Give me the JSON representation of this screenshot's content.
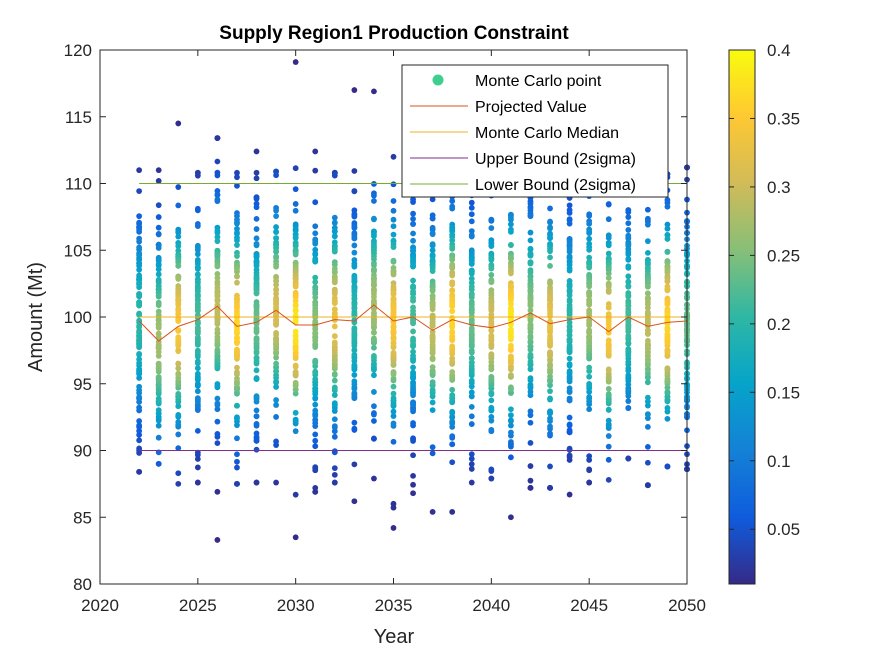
{
  "chart_data": {
    "type": "scatter",
    "title": "Supply Region1 Production Constraint",
    "xlabel": "Year",
    "ylabel": "Amount (Mt)",
    "xlim": [
      2020,
      2050
    ],
    "ylim": [
      80,
      120
    ],
    "xticks": [
      "2020",
      "2025",
      "2030",
      "2035",
      "2040",
      "2045",
      "2050"
    ],
    "yticks": [
      "80",
      "85",
      "90",
      "95",
      "100",
      "105",
      "110",
      "115",
      "120"
    ],
    "grid": false,
    "legend_position": "top-right",
    "legend": [
      {
        "label": "Monte Carlo point",
        "kind": "marker",
        "color": "#3ecf8e"
      },
      {
        "label": "Projected Value",
        "kind": "line",
        "color": "#d95319"
      },
      {
        "label": "Monte Carlo Median",
        "kind": "line",
        "color": "#edb120"
      },
      {
        "label": "Upper Bound (2sigma)",
        "kind": "line",
        "color": "#7e2f8e"
      },
      {
        "label": "Lower Bound (2sigma)",
        "kind": "line",
        "color": "#77ac30"
      }
    ],
    "colorbar": {
      "range": [
        0.01,
        0.4
      ],
      "ticks": [
        "0.05",
        "0.1",
        "0.15",
        "0.2",
        "0.25",
        "0.3",
        "0.35",
        "0.4"
      ],
      "colormap": "parula"
    },
    "years": [
      2022,
      2023,
      2024,
      2025,
      2026,
      2027,
      2028,
      2029,
      2030,
      2031,
      2032,
      2033,
      2034,
      2035,
      2036,
      2037,
      2038,
      2039,
      2040,
      2041,
      2042,
      2043,
      2044,
      2045,
      2046,
      2047,
      2048,
      2049,
      2050
    ],
    "projected_value": [
      99.7,
      98.2,
      99.3,
      99.8,
      100.8,
      99.3,
      99.6,
      100.5,
      99.4,
      99.4,
      99.8,
      99.7,
      100.9,
      99.7,
      100.0,
      99.0,
      99.8,
      99.4,
      99.2,
      99.6,
      100.3,
      99.5,
      99.8,
      100.0,
      98.9,
      100.0,
      99.3,
      99.6,
      99.7
    ],
    "monte_carlo_median": 100,
    "upper_bound_2sigma": 90,
    "lower_bound_2sigma": 110,
    "point_ranges": [
      [
        88.4,
        111.0
      ],
      [
        89.0,
        111.0
      ],
      [
        87.5,
        114.5
      ],
      [
        87.6,
        110.8
      ],
      [
        83.3,
        113.4
      ],
      [
        87.5,
        110.8
      ],
      [
        87.6,
        112.4
      ],
      [
        87.6,
        110.9
      ],
      [
        83.5,
        119.1
      ],
      [
        86.9,
        112.4
      ],
      [
        87.6,
        110.8
      ],
      [
        86.2,
        117.0
      ],
      [
        87.9,
        116.9
      ],
      [
        84.2,
        112.0
      ],
      [
        86.8,
        109.5
      ],
      [
        85.4,
        110.2
      ],
      [
        85.4,
        109.6
      ],
      [
        87.6,
        109.4
      ],
      [
        87.9,
        109.2
      ],
      [
        85.0,
        109.6
      ],
      [
        87.2,
        109.1
      ],
      [
        87.2,
        109.4
      ],
      [
        86.7,
        109.4
      ],
      [
        87.6,
        110.0
      ],
      [
        87.8,
        110.3
      ],
      [
        89.4,
        109.8
      ],
      [
        87.4,
        110.6
      ],
      [
        88.8,
        110.7
      ],
      [
        88.6,
        111.2
      ]
    ],
    "point_count_per_year": 100
  }
}
